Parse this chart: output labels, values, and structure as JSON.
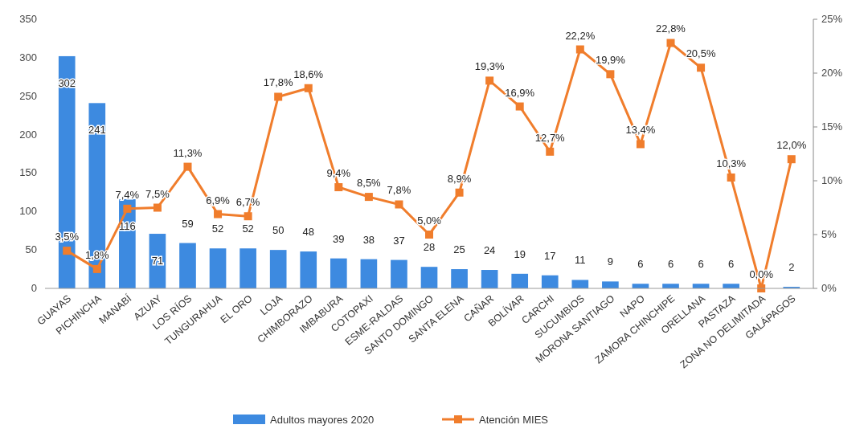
{
  "chart_data": {
    "type": "bar",
    "categories": [
      "GUAYAS",
      "PICHINCHA",
      "MANABÍ",
      "AZUAY",
      "LOS RÍOS",
      "TUNGURAHUA",
      "EL ORO",
      "LOJA",
      "CHIMBORAZO",
      "IMBABURA",
      "COTOPAXI",
      "ESME-RALDAS",
      "SANTO DOMINGO",
      "SANTA ELENA",
      "CAÑAR",
      "BOLÍVAR",
      "CARCHI",
      "SUCUMBIOS",
      "MORONA SANTIAGO",
      "NAPO",
      "ZAMORA CHINCHIPE",
      "ORELLANA",
      "PASTAZA",
      "ZONA NO DELIMITADA",
      "GALÁPAGOS"
    ],
    "series": [
      {
        "name": "Adultos mayores 2020",
        "color": "#3d8ae0",
        "values": [
          302,
          241,
          116,
          71,
          59,
          52,
          52,
          50,
          48,
          39,
          38,
          37,
          28,
          25,
          24,
          19,
          17,
          11,
          9,
          6,
          6,
          6,
          6,
          null,
          2
        ],
        "value_labels": [
          "302",
          "241",
          "116",
          "71",
          "59",
          "52",
          "52",
          "50",
          "48",
          "39",
          "38",
          "37",
          "28",
          "25",
          "24",
          "19",
          "17",
          "11",
          "9",
          "6",
          "6",
          "6",
          "6",
          null,
          "2"
        ]
      },
      {
        "name": "Atención MIES",
        "type": "line",
        "axis": "y2",
        "color": "#f07d2c",
        "values": [
          3.5,
          1.8,
          7.4,
          7.5,
          11.3,
          6.9,
          6.7,
          17.8,
          18.6,
          9.4,
          8.5,
          7.8,
          5.0,
          8.9,
          19.3,
          16.9,
          12.7,
          22.2,
          19.9,
          13.4,
          22.8,
          20.5,
          10.3,
          0.0,
          12.0
        ],
        "value_labels": [
          "3,5%",
          "1,8%",
          "7,4%",
          "7,5%",
          "11,3%",
          "6,9%",
          "6,7%",
          "17,8%",
          "18,6%",
          "9,4%",
          "8,5%",
          "7,8%",
          "5,0%",
          "8,9%",
          "19,3%",
          "16,9%",
          "12,7%",
          "22,2%",
          "19,9%",
          "13,4%",
          "22,8%",
          "20,5%",
          "10,3%",
          "0,0%",
          "12,0%"
        ]
      }
    ],
    "ylim": [
      0,
      350
    ],
    "yticks": [
      0,
      50,
      100,
      150,
      200,
      250,
      300,
      350
    ],
    "y2lim": [
      0,
      25
    ],
    "y2ticks": [
      {
        "value": 0,
        "label": "0%"
      },
      {
        "value": 5,
        "label": "5%"
      },
      {
        "value": 10,
        "label": "10%"
      },
      {
        "value": 15,
        "label": "15%"
      },
      {
        "value": 20,
        "label": "20%"
      },
      {
        "value": 25,
        "label": "25%"
      }
    ],
    "marker": "square",
    "legend": "bottom",
    "grid": false
  }
}
